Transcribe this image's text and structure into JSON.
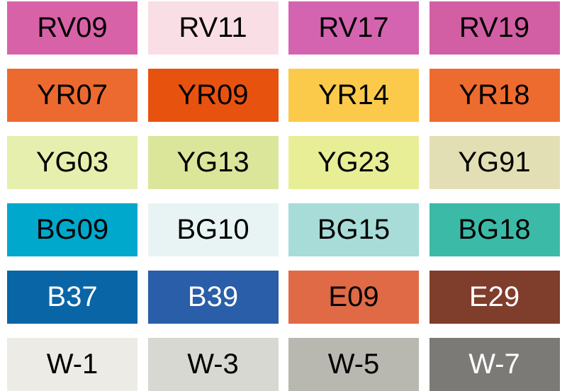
{
  "swatches": [
    {
      "code": "RV09",
      "color": "#d862a8",
      "text": "dark"
    },
    {
      "code": "RV11",
      "color": "#f9dfe5",
      "text": "dark"
    },
    {
      "code": "RV17",
      "color": "#d464b0",
      "text": "dark"
    },
    {
      "code": "RV19",
      "color": "#d25fa3",
      "text": "dark"
    },
    {
      "code": "YR07",
      "color": "#ec6a2f",
      "text": "dark"
    },
    {
      "code": "YR09",
      "color": "#e8520f",
      "text": "dark"
    },
    {
      "code": "YR14",
      "color": "#fbca4a",
      "text": "dark"
    },
    {
      "code": "YR18",
      "color": "#ed6b2e",
      "text": "dark"
    },
    {
      "code": "YG03",
      "color": "#e6efad",
      "text": "dark"
    },
    {
      "code": "YG13",
      "color": "#dbe69b",
      "text": "dark"
    },
    {
      "code": "YG23",
      "color": "#e8ee96",
      "text": "dark"
    },
    {
      "code": "YG91",
      "color": "#e3dfb5",
      "text": "dark"
    },
    {
      "code": "BG09",
      "color": "#00a8cc",
      "text": "dark"
    },
    {
      "code": "BG10",
      "color": "#e8f4f4",
      "text": "dark"
    },
    {
      "code": "BG15",
      "color": "#a8dcd8",
      "text": "dark"
    },
    {
      "code": "BG18",
      "color": "#3cbaa8",
      "text": "dark"
    },
    {
      "code": "B37",
      "color": "#0a65a6",
      "text": "light"
    },
    {
      "code": "B39",
      "color": "#2a5ea8",
      "text": "light"
    },
    {
      "code": "E09",
      "color": "#e06a45",
      "text": "dark"
    },
    {
      "code": "E29",
      "color": "#7f3d2b",
      "text": "light"
    },
    {
      "code": "W-1",
      "color": "#ecebe6",
      "text": "dark"
    },
    {
      "code": "W-3",
      "color": "#d8d8d2",
      "text": "dark"
    },
    {
      "code": "W-5",
      "color": "#b8b8b0",
      "text": "dark"
    },
    {
      "code": "W-7",
      "color": "#7b7a76",
      "text": "light"
    }
  ]
}
